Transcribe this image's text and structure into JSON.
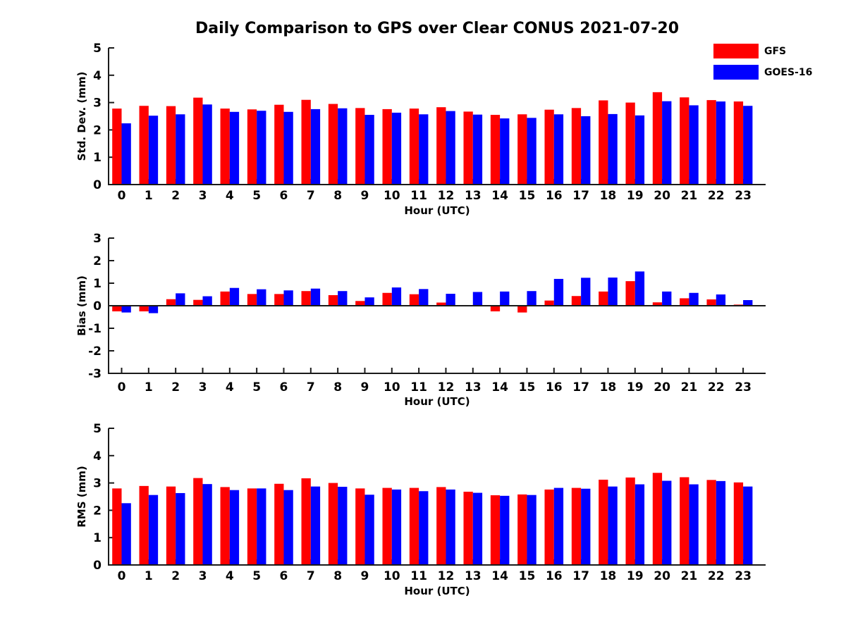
{
  "title": "Daily Comparison to GPS over Clear CONUS 2021-07-20",
  "legend": {
    "position": "top-right",
    "items": [
      {
        "label": "GFS",
        "color": "#ff0000"
      },
      {
        "label": "GOES-16",
        "color": "#0000ff"
      }
    ]
  },
  "colors": {
    "gfs": "#ff0000",
    "goes16": "#0000ff",
    "axis": "#1a1a1a",
    "background": "#ffffff"
  },
  "chart_data": [
    {
      "type": "bar",
      "name": "std-dev",
      "ylabel": "Std. Dev. (mm)",
      "xlabel": "Hour (UTC)",
      "ylim": [
        0,
        5
      ],
      "yticks": [
        0,
        1,
        2,
        3,
        4,
        5
      ],
      "grid": false,
      "categories": [
        "0",
        "1",
        "2",
        "3",
        "4",
        "5",
        "6",
        "7",
        "8",
        "9",
        "10",
        "11",
        "12",
        "13",
        "14",
        "15",
        "16",
        "17",
        "18",
        "19",
        "20",
        "21",
        "22",
        "23"
      ],
      "series": [
        {
          "name": "GFS",
          "color": "#ff0000",
          "values": [
            2.78,
            2.88,
            2.87,
            3.18,
            2.78,
            2.75,
            2.92,
            3.1,
            2.95,
            2.8,
            2.76,
            2.78,
            2.83,
            2.67,
            2.55,
            2.57,
            2.74,
            2.8,
            3.08,
            3.0,
            3.38,
            3.19,
            3.09,
            3.04
          ]
        },
        {
          "name": "GOES-16",
          "color": "#0000ff",
          "values": [
            2.24,
            2.52,
            2.57,
            2.93,
            2.66,
            2.7,
            2.66,
            2.76,
            2.79,
            2.55,
            2.63,
            2.57,
            2.69,
            2.56,
            2.42,
            2.44,
            2.57,
            2.5,
            2.58,
            2.53,
            3.05,
            2.9,
            3.04,
            2.88
          ]
        }
      ]
    },
    {
      "type": "bar",
      "name": "bias",
      "ylabel": "Bias (mm)",
      "xlabel": "Hour (UTC)",
      "ylim": [
        -3,
        3
      ],
      "yticks": [
        -3,
        -2,
        -1,
        0,
        1,
        2,
        3
      ],
      "grid": false,
      "categories": [
        "0",
        "1",
        "2",
        "3",
        "4",
        "5",
        "6",
        "7",
        "8",
        "9",
        "10",
        "11",
        "12",
        "13",
        "14",
        "15",
        "16",
        "17",
        "18",
        "19",
        "20",
        "21",
        "22",
        "23"
      ],
      "series": [
        {
          "name": "GFS",
          "color": "#ff0000",
          "values": [
            -0.25,
            -0.25,
            0.29,
            0.26,
            0.63,
            0.52,
            0.52,
            0.65,
            0.47,
            0.21,
            0.57,
            0.51,
            0.14,
            0.0,
            -0.25,
            -0.3,
            0.23,
            0.43,
            0.63,
            1.09,
            0.15,
            0.33,
            0.28,
            0.05
          ]
        },
        {
          "name": "GOES-16",
          "color": "#0000ff",
          "values": [
            -0.3,
            -0.33,
            0.55,
            0.42,
            0.79,
            0.73,
            0.68,
            0.76,
            0.65,
            0.37,
            0.81,
            0.74,
            0.53,
            0.61,
            0.63,
            0.65,
            1.19,
            1.24,
            1.25,
            1.52,
            0.63,
            0.57,
            0.5,
            0.25
          ]
        }
      ]
    },
    {
      "type": "bar",
      "name": "rms",
      "ylabel": "RMS (mm)",
      "xlabel": "Hour (UTC)",
      "ylim": [
        0,
        5
      ],
      "yticks": [
        0,
        1,
        2,
        3,
        4,
        5
      ],
      "grid": false,
      "categories": [
        "0",
        "1",
        "2",
        "3",
        "4",
        "5",
        "6",
        "7",
        "8",
        "9",
        "10",
        "11",
        "12",
        "13",
        "14",
        "15",
        "16",
        "17",
        "18",
        "19",
        "20",
        "21",
        "22",
        "23"
      ],
      "series": [
        {
          "name": "GFS",
          "color": "#ff0000",
          "values": [
            2.8,
            2.89,
            2.87,
            3.18,
            2.85,
            2.8,
            2.97,
            3.17,
            3.0,
            2.8,
            2.82,
            2.82,
            2.85,
            2.68,
            2.55,
            2.58,
            2.76,
            2.82,
            3.12,
            3.2,
            3.37,
            3.21,
            3.11,
            3.02
          ]
        },
        {
          "name": "GOES-16",
          "color": "#0000ff",
          "values": [
            2.26,
            2.56,
            2.63,
            2.96,
            2.74,
            2.8,
            2.74,
            2.87,
            2.86,
            2.57,
            2.76,
            2.7,
            2.76,
            2.64,
            2.53,
            2.56,
            2.82,
            2.79,
            2.87,
            2.95,
            3.08,
            2.95,
            3.07,
            2.87
          ]
        }
      ]
    }
  ]
}
